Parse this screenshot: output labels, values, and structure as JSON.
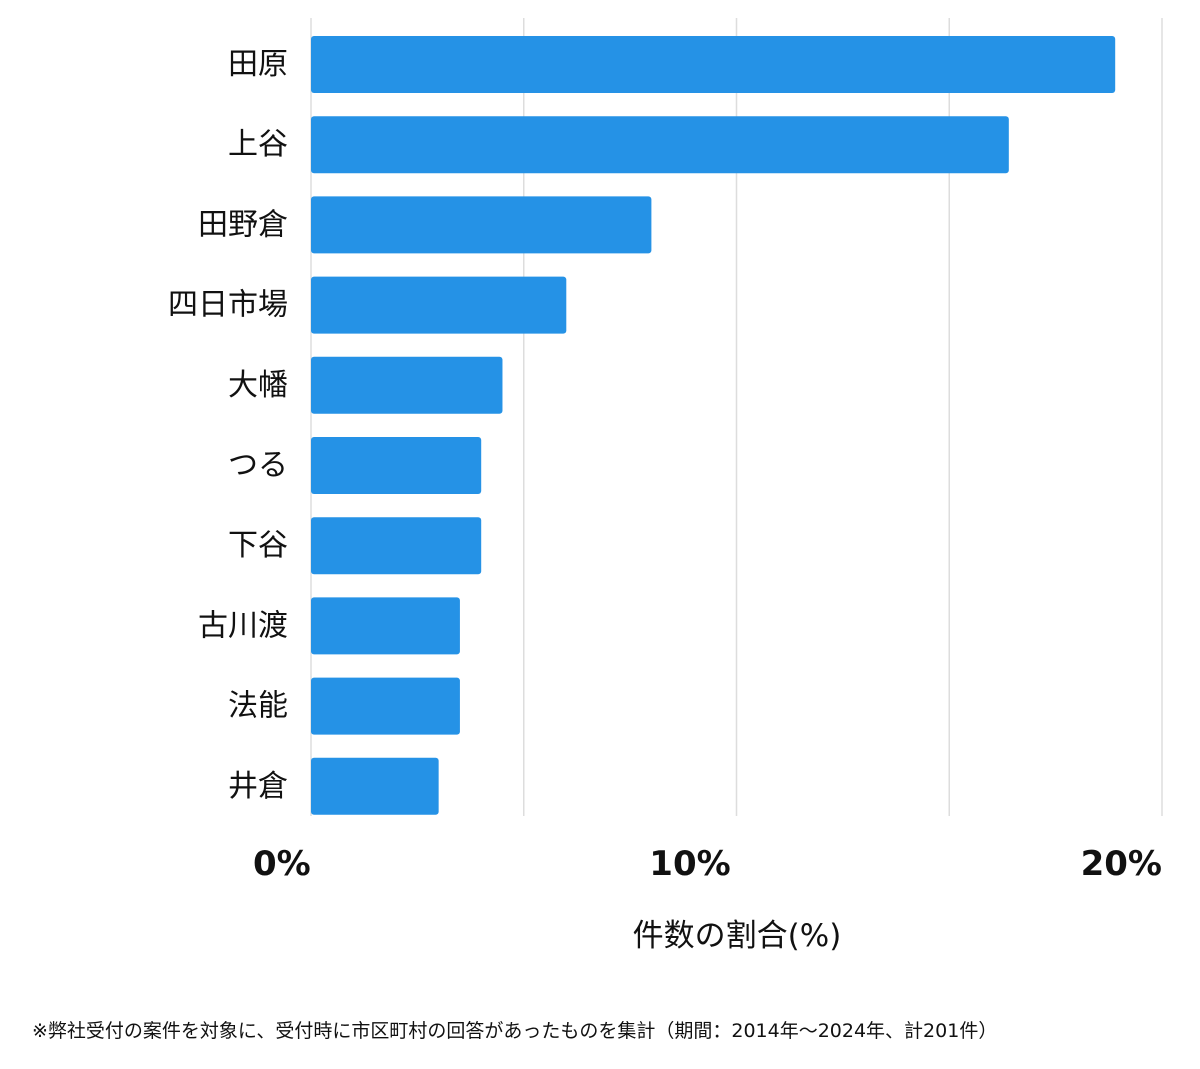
{
  "chart_data": {
    "type": "bar",
    "orientation": "horizontal",
    "categories": [
      "田原",
      "上谷",
      "田野倉",
      "四日市場",
      "大幡",
      "つる",
      "下谷",
      "古川渡",
      "法能",
      "井倉"
    ],
    "values": [
      18.9,
      16.4,
      8.0,
      6.0,
      4.5,
      4.0,
      4.0,
      3.5,
      3.5,
      3.0
    ],
    "xlim": [
      0,
      20
    ],
    "xticks": [
      {
        "value": 0,
        "label": "0%"
      },
      {
        "value": 10,
        "label": "10%"
      },
      {
        "value": 20,
        "label": "20%"
      }
    ],
    "gridlines": [
      0,
      5,
      10,
      15,
      20
    ],
    "grid": true,
    "xlabel": "件数の割合(%)",
    "ylabel": "",
    "title": "",
    "bar_color": "#2592e6",
    "grid_color": "#dddddd"
  },
  "footnote": "※弊社受付の案件を対象に、受付時に市区町村の回答があったものを集計（期間：2014年～2024年、計201件）"
}
